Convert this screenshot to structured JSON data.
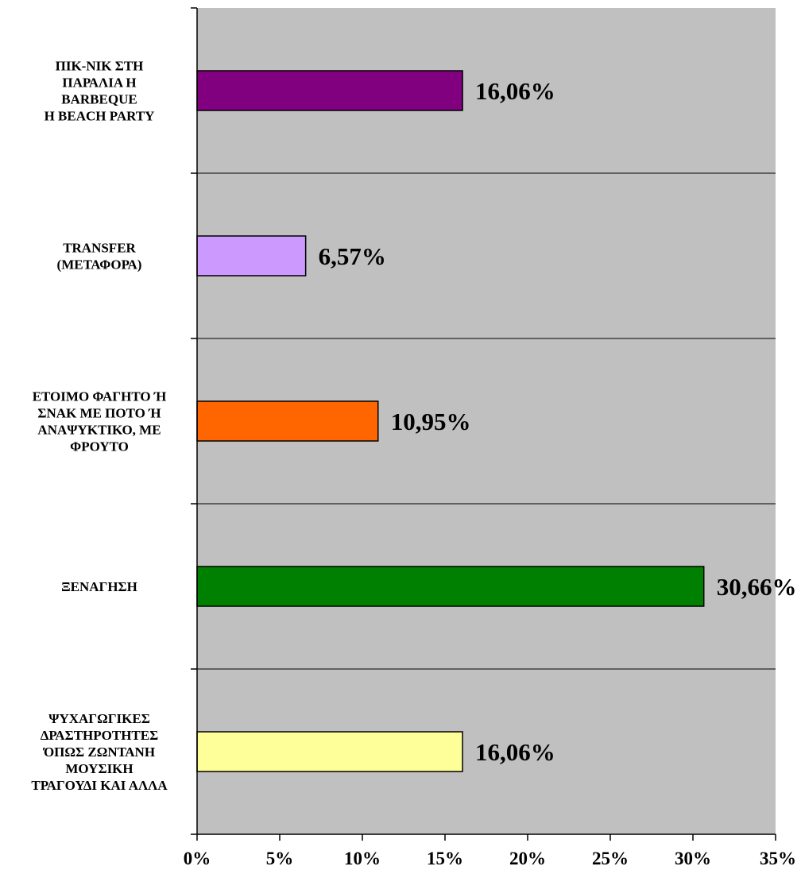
{
  "chart_data": {
    "type": "bar",
    "orientation": "horizontal",
    "categories": [
      [
        "ΠΙΚ-ΝΙΚ ΣΤΗ",
        "ΠΑΡΑΛΙΑ Η",
        "BARBEQUE",
        "Η BEACH PARTY"
      ],
      [
        "TRANSFER",
        "(ΜΕΤΑΦΟΡΑ)"
      ],
      [
        "ΕΤΟΙΜΟ ΦΑΓΗΤΟ Ή",
        "ΣΝΑΚ ΜΕ ΠΟΤΟ Ή",
        "ΑΝΑΨΥΚΤΙΚΟ, ΜΕ",
        "ΦΡΟΥΤΟ"
      ],
      [
        "ΞΕΝΑΓΗΣΗ"
      ],
      [
        "ΨΥΧΑΓΩΓΙΚΕΣ",
        "ΔΡΑΣΤΗΡΟΤΗΤΕΣ",
        "ΌΠΩΣ ΖΩΝΤΑΝΗ",
        "ΜΟΥΣΙΚΗ",
        "ΤΡΑΓΟΥΔΙ ΚΑΙ ΑΛΛΑ"
      ]
    ],
    "values": [
      16.06,
      6.57,
      10.95,
      30.66,
      16.06
    ],
    "value_labels": [
      "16,06%",
      "6,57%",
      "10,95%",
      "30,66%",
      "16,06%"
    ],
    "bar_colors": [
      "#800080",
      "#cc99ff",
      "#ff6600",
      "#008000",
      "#ffff99"
    ],
    "xlim": [
      0,
      35
    ],
    "xticks": [
      0,
      5,
      10,
      15,
      20,
      25,
      30,
      35
    ],
    "xtick_labels": [
      "0%",
      "5%",
      "10%",
      "15%",
      "20%",
      "25%",
      "30%",
      "35%"
    ],
    "plot_background": "#c0c0c0",
    "grid": "horizontal separators between categories",
    "legend": "none"
  }
}
